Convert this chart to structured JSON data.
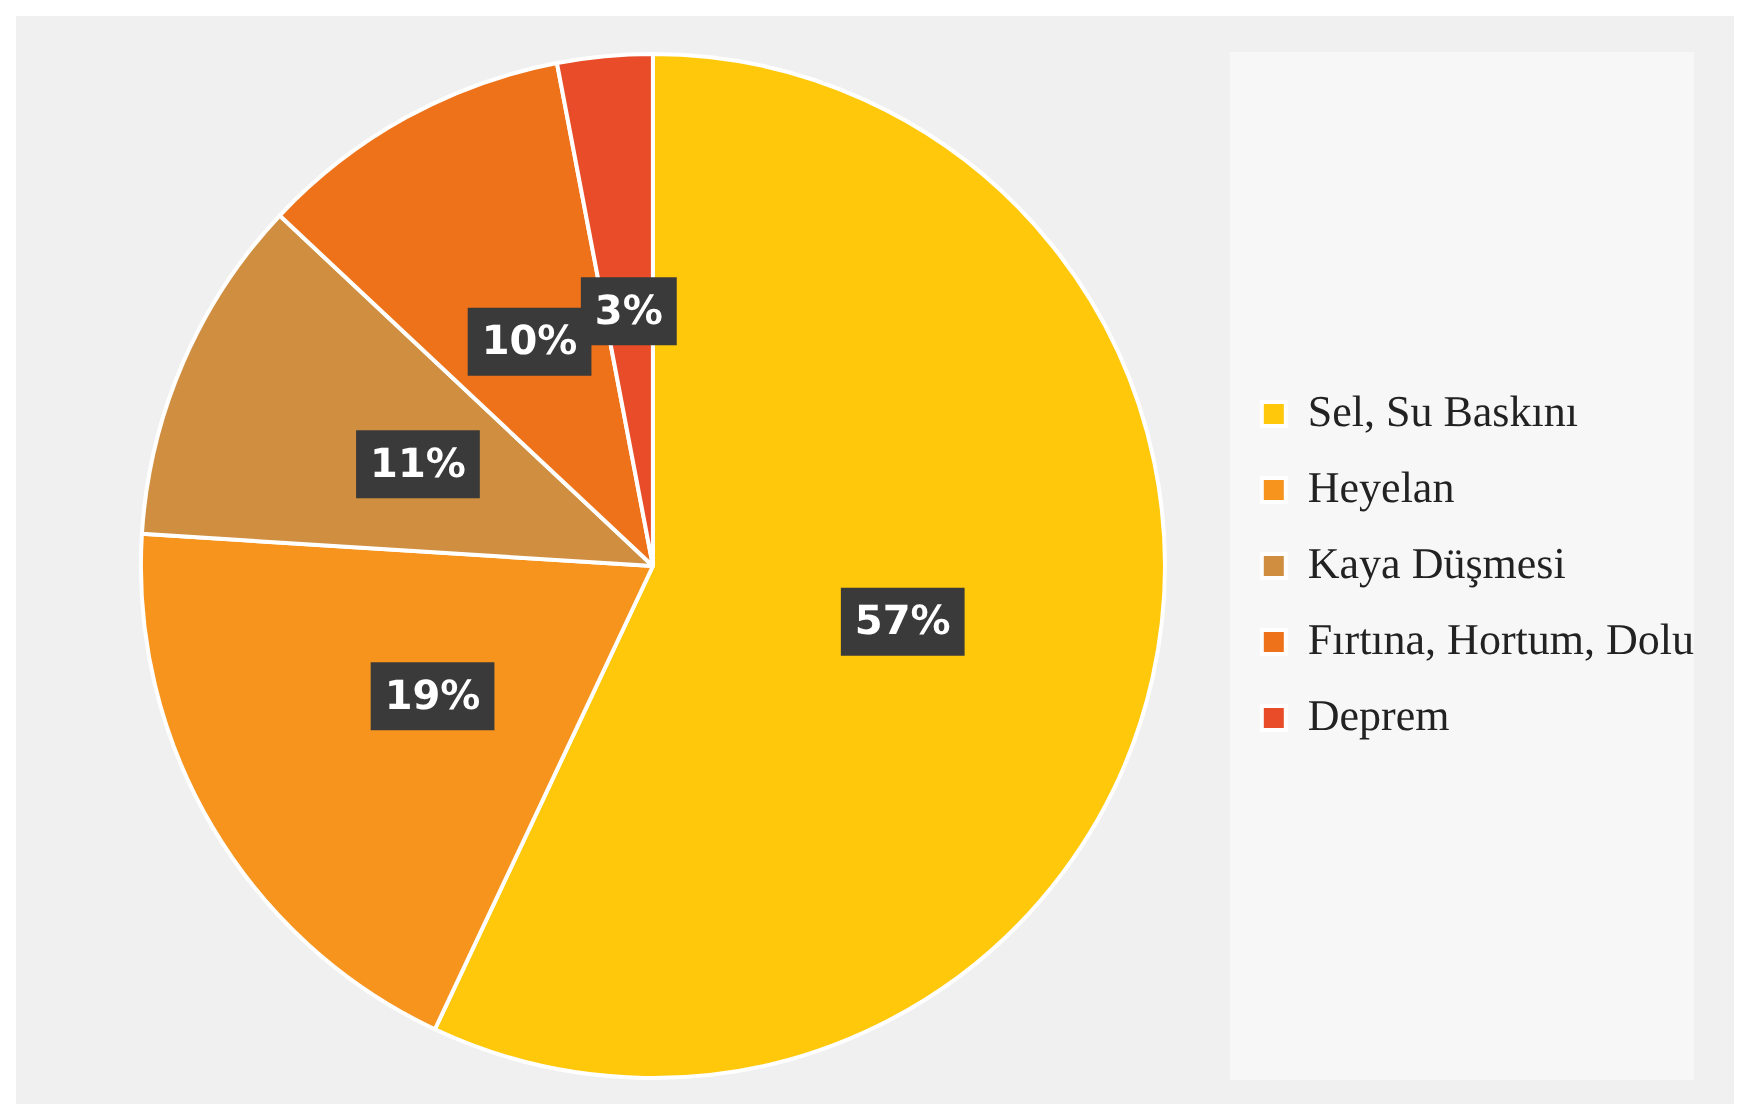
{
  "chart_data": {
    "type": "pie",
    "categories": [
      "Sel, Su Baskını",
      "Heyelan",
      "Kaya Düşmesi",
      "Fırtına, Hortum, Dolu",
      "Deprem"
    ],
    "values": [
      57,
      19,
      11,
      10,
      3
    ],
    "colors": [
      "#ffc80a",
      "#f7941e",
      "#d08f40",
      "#ee7219",
      "#e84c28"
    ],
    "value_labels": [
      "57%",
      "19%",
      "11%",
      "10%",
      "3%"
    ],
    "legend": "right"
  }
}
